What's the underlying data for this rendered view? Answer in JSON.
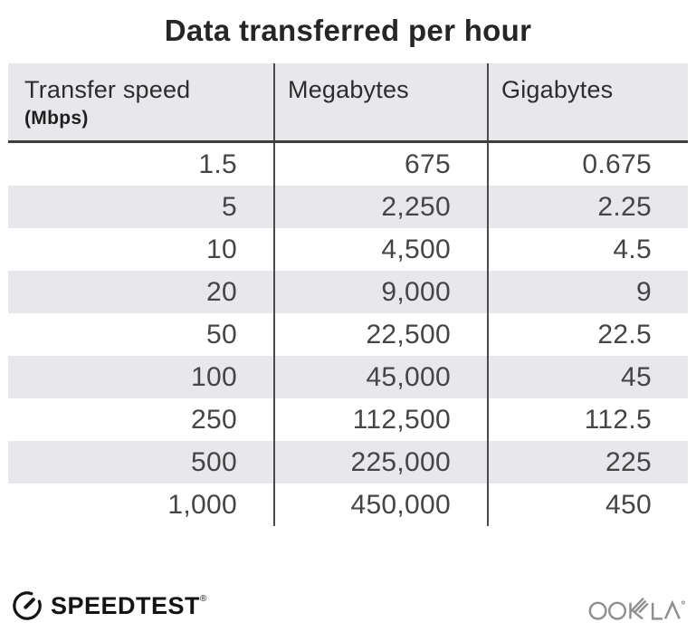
{
  "title": "Data transferred per hour",
  "table": {
    "headers": [
      {
        "label": "Transfer speed",
        "sublabel": "(Mbps)"
      },
      {
        "label": "Megabytes"
      },
      {
        "label": "Gigabytes"
      }
    ],
    "rows": [
      [
        "1.5",
        "675",
        "0.675"
      ],
      [
        "5",
        "2,250",
        "2.25"
      ],
      [
        "10",
        "4,500",
        "4.5"
      ],
      [
        "20",
        "9,000",
        "9"
      ],
      [
        "50",
        "22,500",
        "22.5"
      ],
      [
        "100",
        "45,000",
        "45"
      ],
      [
        "250",
        "112,500",
        "112.5"
      ],
      [
        "500",
        "225,000",
        "225"
      ],
      [
        "1,000",
        "450,000",
        "450"
      ]
    ]
  },
  "chart_data": {
    "type": "table",
    "title": "Data transferred per hour",
    "columns": [
      "Transfer speed (Mbps)",
      "Megabytes",
      "Gigabytes"
    ],
    "rows": [
      [
        1.5,
        675,
        0.675
      ],
      [
        5,
        2250,
        2.25
      ],
      [
        10,
        4500,
        4.5
      ],
      [
        20,
        9000,
        9
      ],
      [
        50,
        22500,
        22.5
      ],
      [
        100,
        45000,
        45
      ],
      [
        250,
        112500,
        112.5
      ],
      [
        500,
        225000,
        225
      ],
      [
        1000,
        450000,
        450
      ]
    ]
  },
  "footer": {
    "speedtest_label": "SPEEDTEST",
    "speedtest_trademark": "®",
    "ookla_label": "OOKLA"
  },
  "colors": {
    "row_shade": "#e8e7eb",
    "divider": "#4a4a4a",
    "header_rule": "#3d3d3d",
    "body_text": "#454545",
    "title_text": "#262626",
    "logo_black": "#141414",
    "ookla_gray": "#8f8f8f"
  }
}
